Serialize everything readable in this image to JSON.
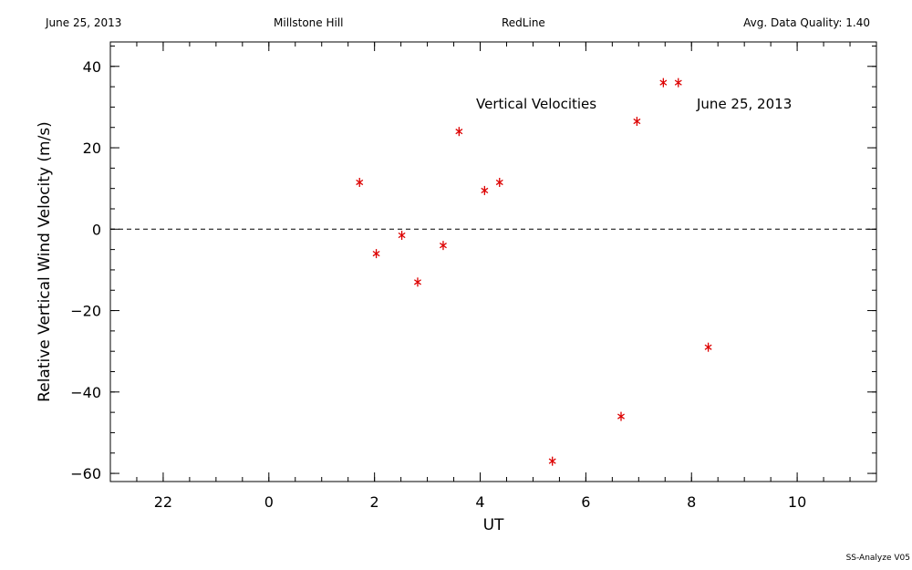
{
  "header": {
    "date": "June 25, 2013",
    "site": "Millstone Hill",
    "instrument": "RedLine",
    "quality": "Avg. Data Quality: 1.40"
  },
  "footer": "SS-Analyze V05",
  "chart_data": {
    "type": "scatter",
    "annotations": [
      "Vertical Velocities",
      "June 25, 2013"
    ],
    "xlabel": "UT",
    "ylabel": "Relative Vertical Wind Velocity (m/s)",
    "x_ticks": [
      22,
      0,
      2,
      4,
      6,
      8,
      10
    ],
    "y_ticks": [
      40,
      20,
      0,
      -20,
      -40,
      -60
    ],
    "xlim": [
      "21:00",
      "11:30"
    ],
    "ylim": [
      -62,
      46
    ],
    "zero_line": true,
    "marker": "asterisk",
    "marker_color": "#dd0000",
    "points": [
      {
        "x": "01:43",
        "y": 11.5
      },
      {
        "x": "02:02",
        "y": -6
      },
      {
        "x": "02:31",
        "y": -1.5
      },
      {
        "x": "02:49",
        "y": -13
      },
      {
        "x": "03:18",
        "y": -4
      },
      {
        "x": "03:36",
        "y": 24
      },
      {
        "x": "04:05",
        "y": 9.5
      },
      {
        "x": "04:22",
        "y": 11.5
      },
      {
        "x": "05:22",
        "y": -57
      },
      {
        "x": "06:40",
        "y": -46
      },
      {
        "x": "06:58",
        "y": 26.5
      },
      {
        "x": "07:28",
        "y": 36
      },
      {
        "x": "07:45",
        "y": 36
      },
      {
        "x": "08:19",
        "y": -29
      }
    ]
  }
}
